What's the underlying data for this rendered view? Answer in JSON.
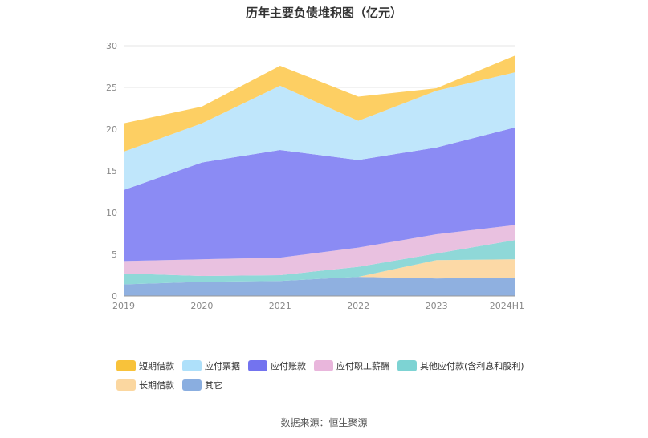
{
  "chart_data": {
    "type": "area",
    "stacked": true,
    "title": "历年主要负债堆积图（亿元）",
    "categories": [
      "2019",
      "2020",
      "2021",
      "2022",
      "2023",
      "2024H1"
    ],
    "ylim": [
      0,
      30
    ],
    "yticks": [
      "0",
      "5",
      "10",
      "15",
      "20",
      "25",
      "30"
    ],
    "grid": true,
    "legend_position": "bottom",
    "series": [
      {
        "name": "其它",
        "color": "#8fb0e0",
        "values": [
          1.4,
          1.7,
          1.8,
          2.3,
          2.1,
          2.2
        ]
      },
      {
        "name": "长期借款",
        "color": "#fcd9a6",
        "values": [
          0.0,
          0.0,
          0.0,
          0.0,
          2.2,
          2.2
        ]
      },
      {
        "name": "其他应付款(含利息和股利)",
        "color": "#8fd8d8",
        "values": [
          1.3,
          0.7,
          0.7,
          1.2,
          0.8,
          2.3
        ]
      },
      {
        "name": "应付职工薪酬",
        "color": "#e9c1e0",
        "values": [
          1.5,
          2.0,
          2.1,
          2.3,
          2.3,
          1.8
        ]
      },
      {
        "name": "应付账款",
        "color": "#8b8bf4",
        "values": [
          8.5,
          11.6,
          12.9,
          10.5,
          10.4,
          11.7
        ]
      },
      {
        "name": "应付票据",
        "color": "#bfe6fb",
        "values": [
          4.6,
          4.7,
          7.7,
          4.7,
          6.8,
          6.6
        ]
      },
      {
        "name": "短期借款",
        "color": "#fdcf63",
        "values": [
          3.4,
          2.0,
          2.4,
          2.9,
          0.3,
          2.0
        ]
      }
    ]
  },
  "legend": [
    {
      "name": "短期借款",
      "color": "#f8c23a"
    },
    {
      "name": "应付票据",
      "color": "#aee0fa"
    },
    {
      "name": "应付账款",
      "color": "#7373ef"
    },
    {
      "name": "应付职工薪酬",
      "color": "#e9b6dc"
    },
    {
      "name": "其他应付款(含利息和股利)",
      "color": "#7dd3d3"
    },
    {
      "name": "长期借款",
      "color": "#fbd7a0"
    },
    {
      "name": "其它",
      "color": "#8aaee0"
    }
  ],
  "source": "数据来源：恒生聚源"
}
